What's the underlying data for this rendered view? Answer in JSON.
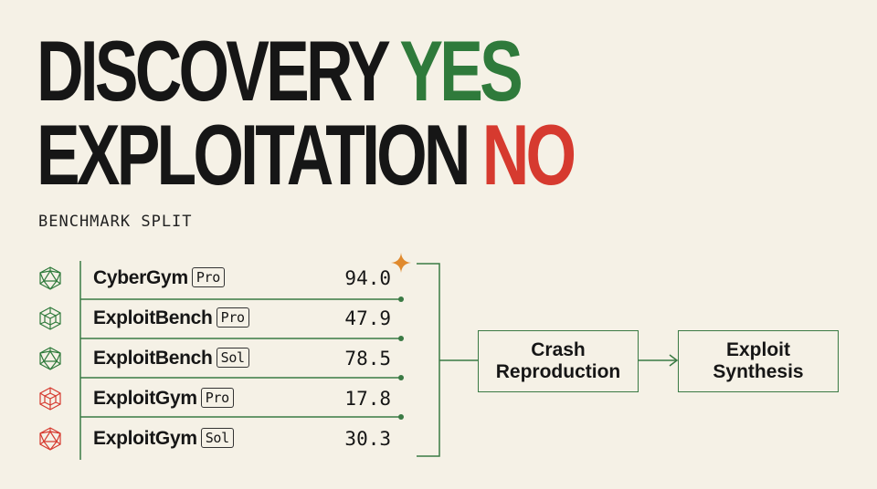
{
  "headline": {
    "line1_word": "DISCOVERY",
    "line1_verdict": "YES",
    "line2_word": "EXPLOITATION",
    "line2_verdict": "NO"
  },
  "subtitle": "BENCHMARK SPLIT",
  "colors": {
    "yes": "#2f7a3b",
    "no": "#d63a2f",
    "line": "#3a7a44",
    "accent": "#e08a2e",
    "background": "#f5f1e6"
  },
  "benchmarks": [
    {
      "name": "CyberGym",
      "variant": "Pro",
      "score": "94.0",
      "icon": "green-polyhedron-icon"
    },
    {
      "name": "ExploitBench",
      "variant": "Pro",
      "score": "47.9",
      "icon": "green-cube-icon"
    },
    {
      "name": "ExploitBench",
      "variant": "Sol",
      "score": "78.5",
      "icon": "green-polyhedron-icon"
    },
    {
      "name": "ExploitGym",
      "variant": "Pro",
      "score": "17.8",
      "icon": "red-cube-icon"
    },
    {
      "name": "ExploitGym",
      "variant": "Sol",
      "score": "30.3",
      "icon": "red-polyhedron-icon"
    }
  ],
  "flow": {
    "step1": {
      "line1": "Crash",
      "line2": "Reproduction"
    },
    "step2": {
      "line1": "Exploit",
      "line2": "Synthesis"
    }
  }
}
